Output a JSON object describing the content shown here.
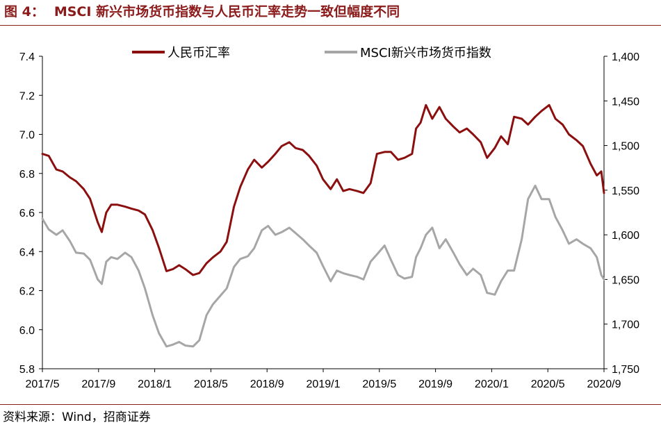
{
  "figure": {
    "label": "图 4：",
    "title": "MSCI 新兴市场货币指数与人民币汇率走势一致但幅度不同",
    "source": "资料来源：Wind，招商证券"
  },
  "colors": {
    "accent": "#8b1a1a",
    "rmb": "#8b0f0f",
    "msci": "#a6a6a6"
  },
  "chart_data": {
    "type": "line",
    "title": "",
    "xlabel": "",
    "x_tick_labels": [
      "2017/5",
      "2017/9",
      "2018/1",
      "2018/5",
      "2018/9",
      "2019/1",
      "2019/5",
      "2019/9",
      "2020/1",
      "2020/5",
      "2020/9"
    ],
    "x_range": [
      "2017-05-01",
      "2020-10-01"
    ],
    "y_left": {
      "min": 5.8,
      "max": 7.4,
      "ticks": [
        "5.8",
        "6.0",
        "6.2",
        "6.4",
        "6.6",
        "6.8",
        "7.0",
        "7.2",
        "7.4"
      ]
    },
    "y_right": {
      "min": 1400,
      "max": 1750,
      "inverted": true,
      "ticks": [
        "1,400",
        "1,450",
        "1,500",
        "1,550",
        "1,600",
        "1,650",
        "1,700",
        "1,750"
      ]
    },
    "legend_position": "top",
    "grid": false,
    "series": [
      {
        "name": "人民币汇率",
        "axis": "left",
        "color": "#8b0f0f",
        "points": [
          [
            "2017-05-01",
            6.9
          ],
          [
            "2017-05-15",
            6.89
          ],
          [
            "2017-06-01",
            6.82
          ],
          [
            "2017-06-15",
            6.81
          ],
          [
            "2017-07-01",
            6.78
          ],
          [
            "2017-07-15",
            6.76
          ],
          [
            "2017-08-01",
            6.72
          ],
          [
            "2017-08-15",
            6.67
          ],
          [
            "2017-09-01",
            6.55
          ],
          [
            "2017-09-10",
            6.5
          ],
          [
            "2017-09-20",
            6.6
          ],
          [
            "2017-10-01",
            6.64
          ],
          [
            "2017-10-15",
            6.64
          ],
          [
            "2017-11-01",
            6.63
          ],
          [
            "2017-11-15",
            6.62
          ],
          [
            "2017-12-01",
            6.61
          ],
          [
            "2017-12-15",
            6.59
          ],
          [
            "2018-01-01",
            6.51
          ],
          [
            "2018-01-15",
            6.42
          ],
          [
            "2018-02-01",
            6.3
          ],
          [
            "2018-02-15",
            6.31
          ],
          [
            "2018-03-01",
            6.33
          ],
          [
            "2018-03-15",
            6.31
          ],
          [
            "2018-04-01",
            6.28
          ],
          [
            "2018-04-15",
            6.29
          ],
          [
            "2018-05-01",
            6.34
          ],
          [
            "2018-05-15",
            6.37
          ],
          [
            "2018-06-01",
            6.4
          ],
          [
            "2018-06-15",
            6.45
          ],
          [
            "2018-07-01",
            6.63
          ],
          [
            "2018-07-15",
            6.73
          ],
          [
            "2018-08-01",
            6.82
          ],
          [
            "2018-08-15",
            6.87
          ],
          [
            "2018-09-01",
            6.83
          ],
          [
            "2018-09-15",
            6.86
          ],
          [
            "2018-10-01",
            6.9
          ],
          [
            "2018-10-15",
            6.94
          ],
          [
            "2018-11-01",
            6.96
          ],
          [
            "2018-11-15",
            6.93
          ],
          [
            "2018-12-01",
            6.92
          ],
          [
            "2018-12-15",
            6.89
          ],
          [
            "2019-01-01",
            6.84
          ],
          [
            "2019-01-15",
            6.77
          ],
          [
            "2019-02-01",
            6.72
          ],
          [
            "2019-02-15",
            6.77
          ],
          [
            "2019-03-01",
            6.71
          ],
          [
            "2019-03-15",
            6.72
          ],
          [
            "2019-04-01",
            6.71
          ],
          [
            "2019-04-15",
            6.7
          ],
          [
            "2019-05-01",
            6.75
          ],
          [
            "2019-05-15",
            6.9
          ],
          [
            "2019-06-01",
            6.91
          ],
          [
            "2019-06-15",
            6.91
          ],
          [
            "2019-07-01",
            6.87
          ],
          [
            "2019-07-15",
            6.88
          ],
          [
            "2019-08-01",
            6.9
          ],
          [
            "2019-08-10",
            7.03
          ],
          [
            "2019-08-20",
            7.06
          ],
          [
            "2019-09-01",
            7.15
          ],
          [
            "2019-09-15",
            7.08
          ],
          [
            "2019-10-01",
            7.14
          ],
          [
            "2019-10-15",
            7.08
          ],
          [
            "2019-11-01",
            7.04
          ],
          [
            "2019-11-15",
            7.01
          ],
          [
            "2019-12-01",
            7.03
          ],
          [
            "2019-12-15",
            7.0
          ],
          [
            "2020-01-01",
            6.96
          ],
          [
            "2020-01-15",
            6.88
          ],
          [
            "2020-02-01",
            6.93
          ],
          [
            "2020-02-15",
            6.99
          ],
          [
            "2020-03-01",
            6.95
          ],
          [
            "2020-03-15",
            7.09
          ],
          [
            "2020-04-01",
            7.08
          ],
          [
            "2020-04-15",
            7.05
          ],
          [
            "2020-05-01",
            7.09
          ],
          [
            "2020-05-15",
            7.12
          ],
          [
            "2020-06-01",
            7.15
          ],
          [
            "2020-06-15",
            7.08
          ],
          [
            "2020-07-01",
            7.05
          ],
          [
            "2020-07-15",
            7.0
          ],
          [
            "2020-08-01",
            6.97
          ],
          [
            "2020-08-15",
            6.94
          ],
          [
            "2020-09-01",
            6.85
          ],
          [
            "2020-09-15",
            6.79
          ],
          [
            "2020-09-25",
            6.81
          ],
          [
            "2020-10-01",
            6.7
          ]
        ]
      },
      {
        "name": "MSCI新兴市场货币指数",
        "axis": "right",
        "color": "#a6a6a6",
        "points": [
          [
            "2017-05-01",
            1582
          ],
          [
            "2017-05-15",
            1594
          ],
          [
            "2017-06-01",
            1600
          ],
          [
            "2017-06-15",
            1595
          ],
          [
            "2017-07-01",
            1607
          ],
          [
            "2017-07-15",
            1620
          ],
          [
            "2017-08-01",
            1621
          ],
          [
            "2017-08-15",
            1628
          ],
          [
            "2017-09-01",
            1650
          ],
          [
            "2017-09-10",
            1655
          ],
          [
            "2017-09-20",
            1630
          ],
          [
            "2017-10-01",
            1625
          ],
          [
            "2017-10-15",
            1627
          ],
          [
            "2017-11-01",
            1620
          ],
          [
            "2017-11-15",
            1625
          ],
          [
            "2017-12-01",
            1640
          ],
          [
            "2017-12-15",
            1660
          ],
          [
            "2018-01-01",
            1690
          ],
          [
            "2018-01-15",
            1710
          ],
          [
            "2018-02-01",
            1725
          ],
          [
            "2018-02-15",
            1723
          ],
          [
            "2018-03-01",
            1720
          ],
          [
            "2018-03-15",
            1724
          ],
          [
            "2018-04-01",
            1725
          ],
          [
            "2018-04-15",
            1718
          ],
          [
            "2018-05-01",
            1690
          ],
          [
            "2018-05-15",
            1678
          ],
          [
            "2018-06-01",
            1668
          ],
          [
            "2018-06-15",
            1660
          ],
          [
            "2018-07-01",
            1636
          ],
          [
            "2018-07-15",
            1627
          ],
          [
            "2018-08-01",
            1624
          ],
          [
            "2018-08-15",
            1615
          ],
          [
            "2018-09-01",
            1595
          ],
          [
            "2018-09-15",
            1590
          ],
          [
            "2018-10-01",
            1600
          ],
          [
            "2018-10-15",
            1597
          ],
          [
            "2018-11-01",
            1592
          ],
          [
            "2018-11-15",
            1598
          ],
          [
            "2018-12-01",
            1605
          ],
          [
            "2018-12-15",
            1612
          ],
          [
            "2019-01-01",
            1620
          ],
          [
            "2019-01-15",
            1635
          ],
          [
            "2019-02-01",
            1652
          ],
          [
            "2019-02-15",
            1640
          ],
          [
            "2019-03-01",
            1643
          ],
          [
            "2019-03-15",
            1645
          ],
          [
            "2019-04-01",
            1647
          ],
          [
            "2019-04-15",
            1650
          ],
          [
            "2019-05-01",
            1630
          ],
          [
            "2019-05-15",
            1622
          ],
          [
            "2019-06-01",
            1612
          ],
          [
            "2019-06-15",
            1628
          ],
          [
            "2019-07-01",
            1645
          ],
          [
            "2019-07-15",
            1649
          ],
          [
            "2019-08-01",
            1647
          ],
          [
            "2019-08-10",
            1625
          ],
          [
            "2019-08-20",
            1615
          ],
          [
            "2019-09-01",
            1600
          ],
          [
            "2019-09-15",
            1592
          ],
          [
            "2019-10-01",
            1615
          ],
          [
            "2019-10-15",
            1605
          ],
          [
            "2019-11-01",
            1620
          ],
          [
            "2019-11-15",
            1633
          ],
          [
            "2019-12-01",
            1645
          ],
          [
            "2019-12-15",
            1638
          ],
          [
            "2020-01-01",
            1645
          ],
          [
            "2020-01-15",
            1665
          ],
          [
            "2020-02-01",
            1667
          ],
          [
            "2020-02-15",
            1652
          ],
          [
            "2020-03-01",
            1640
          ],
          [
            "2020-03-15",
            1640
          ],
          [
            "2020-04-01",
            1605
          ],
          [
            "2020-04-15",
            1560
          ],
          [
            "2020-05-01",
            1545
          ],
          [
            "2020-05-15",
            1560
          ],
          [
            "2020-06-01",
            1560
          ],
          [
            "2020-06-15",
            1580
          ],
          [
            "2020-07-01",
            1595
          ],
          [
            "2020-07-15",
            1610
          ],
          [
            "2020-08-01",
            1605
          ],
          [
            "2020-08-15",
            1610
          ],
          [
            "2020-09-01",
            1615
          ],
          [
            "2020-09-15",
            1625
          ],
          [
            "2020-09-25",
            1645
          ],
          [
            "2020-10-01",
            1650
          ]
        ]
      }
    ]
  }
}
